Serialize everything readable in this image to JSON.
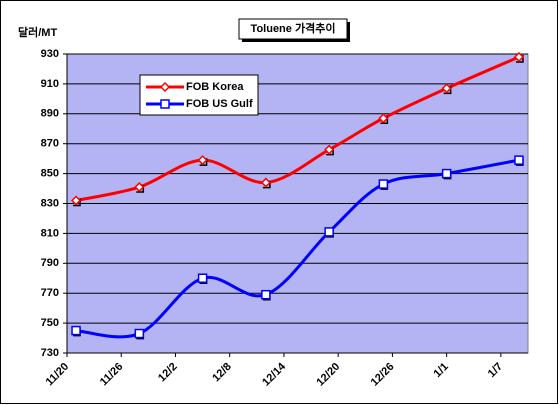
{
  "chart_data": {
    "type": "line",
    "title": "Toluene 가격추이",
    "y_label": "달러/MT",
    "x": [
      1,
      8,
      15,
      22,
      29,
      35,
      42,
      50
    ],
    "xlim": [
      0,
      51
    ],
    "xticks": [
      {
        "value": 0,
        "label": "11/20"
      },
      {
        "value": 6,
        "label": "11/26"
      },
      {
        "value": 12,
        "label": "12/2"
      },
      {
        "value": 18,
        "label": "12/8"
      },
      {
        "value": 24,
        "label": "12/14"
      },
      {
        "value": 30,
        "label": "12/20"
      },
      {
        "value": 36,
        "label": "12/26"
      },
      {
        "value": 42,
        "label": "1/1"
      },
      {
        "value": 48,
        "label": "1/7"
      }
    ],
    "ylim": [
      730,
      930
    ],
    "yticks": [
      730,
      750,
      770,
      790,
      810,
      830,
      850,
      870,
      890,
      910,
      930
    ],
    "grid": true,
    "legend": "upper left",
    "series": [
      {
        "name": "FOB Korea",
        "color": "#ff0000",
        "marker": "diamond",
        "values": [
          832,
          841,
          859,
          844,
          866,
          887,
          907,
          928
        ]
      },
      {
        "name": "FOB US Gulf",
        "color": "#0000ff",
        "marker": "square",
        "values": [
          745,
          743,
          780,
          769,
          811,
          843,
          850,
          859
        ]
      }
    ]
  }
}
